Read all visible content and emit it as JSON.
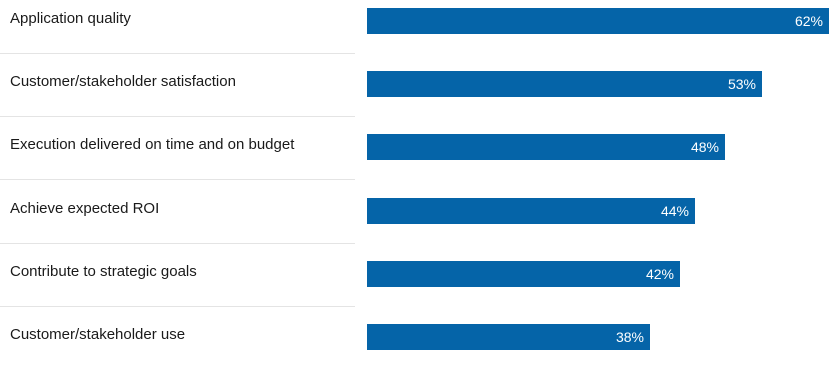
{
  "chart_data": {
    "type": "bar",
    "orientation": "horizontal",
    "categories": [
      "Application quality",
      "Customer/stakeholder satisfaction",
      "Execution delivered on time and on budget",
      "Achieve expected ROI",
      "Contribute to strategic goals",
      "Customer/stakeholder use"
    ],
    "values": [
      62,
      53,
      48,
      44,
      42,
      38
    ],
    "value_labels": [
      "62%",
      "53%",
      "48%",
      "44%",
      "42%",
      "38%"
    ],
    "unit": "%",
    "xlim": [
      0,
      62
    ],
    "bar_color": "#0564a8",
    "value_label_color": "#ffffff",
    "grid": false,
    "legend": "none"
  }
}
